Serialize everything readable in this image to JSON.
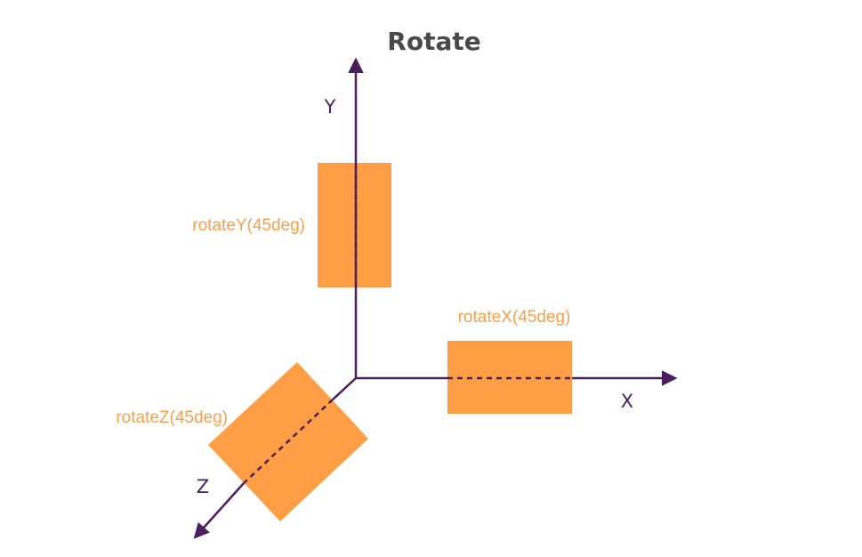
{
  "title": "Rotate",
  "axes": {
    "x_label": "X",
    "y_label": "Y",
    "z_label": "Z"
  },
  "shapes": {
    "rotate_y_label": "rotateY(45deg)",
    "rotate_x_label": "rotateX(45deg)",
    "rotate_z_label": "rotateZ(45deg)"
  },
  "colors": {
    "axis": "#4a1f5c",
    "shape_fill": "#ff9e45",
    "label_text": "#f9a04c",
    "title_text": "#4a4a4a"
  }
}
